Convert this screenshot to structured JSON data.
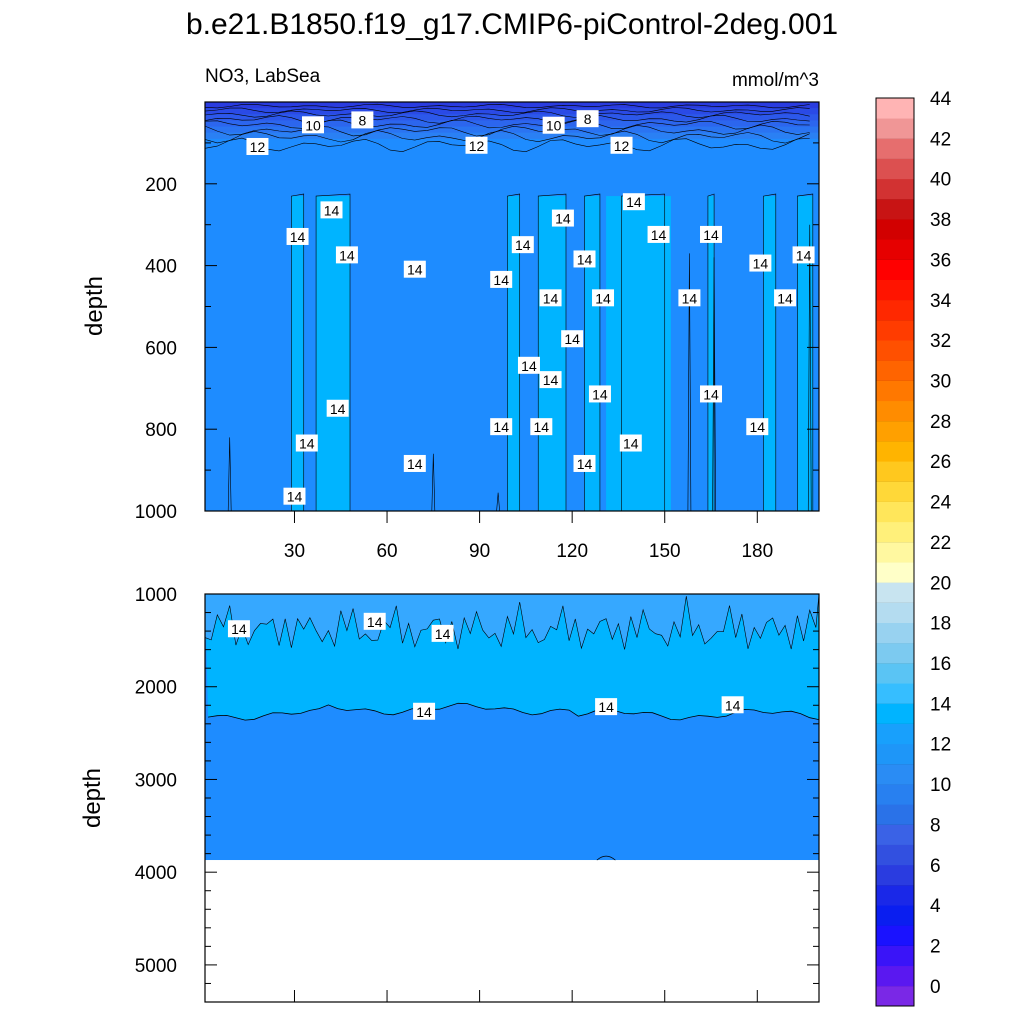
{
  "page_title": "b.e21.B1850.f19_g17.CMIP6-piControl-2deg.001",
  "colors": {
    "band_deep": "#1e8cff",
    "band_mid": "#00b4ff",
    "band_light": "#36a8ff",
    "surface_dark": "#2a4ae6",
    "missing": "#ffffff",
    "contour_line": "#000000"
  },
  "chart_data": [
    {
      "type": "heatmap",
      "panel": "upper",
      "left_title": "NO3, LabSea",
      "right_title": "mmol/m^3",
      "ylabel": "depth",
      "xlim": [
        1,
        200
      ],
      "ylim": [
        1000,
        0
      ],
      "xticks": [
        30,
        60,
        90,
        120,
        150,
        180
      ],
      "yticks": [
        200,
        400,
        600,
        800,
        1000
      ],
      "contour_levels_labeled": [
        8,
        10,
        12,
        14
      ],
      "contour_labels": [
        {
          "text": "8",
          "x": 52,
          "y": 45
        },
        {
          "text": "10",
          "x": 36,
          "y": 57
        },
        {
          "text": "12",
          "x": 18,
          "y": 110
        },
        {
          "text": "12",
          "x": 89,
          "y": 107
        },
        {
          "text": "10",
          "x": 114,
          "y": 58
        },
        {
          "text": "8",
          "x": 125,
          "y": 42
        },
        {
          "text": "12",
          "x": 136,
          "y": 107
        },
        {
          "text": "14",
          "x": 31,
          "y": 330
        },
        {
          "text": "14",
          "x": 42,
          "y": 265
        },
        {
          "text": "14",
          "x": 47,
          "y": 375
        },
        {
          "text": "14",
          "x": 69,
          "y": 410
        },
        {
          "text": "14",
          "x": 97,
          "y": 435
        },
        {
          "text": "14",
          "x": 104,
          "y": 350
        },
        {
          "text": "14",
          "x": 117,
          "y": 285
        },
        {
          "text": "14",
          "x": 113,
          "y": 480
        },
        {
          "text": "14",
          "x": 120,
          "y": 580
        },
        {
          "text": "14",
          "x": 124,
          "y": 385
        },
        {
          "text": "14",
          "x": 130,
          "y": 480
        },
        {
          "text": "14",
          "x": 140,
          "y": 245
        },
        {
          "text": "14",
          "x": 148,
          "y": 325
        },
        {
          "text": "14",
          "x": 158,
          "y": 480
        },
        {
          "text": "14",
          "x": 165,
          "y": 325
        },
        {
          "text": "14",
          "x": 181,
          "y": 395
        },
        {
          "text": "14",
          "x": 189,
          "y": 480
        },
        {
          "text": "14",
          "x": 195,
          "y": 375
        },
        {
          "text": "14",
          "x": 106,
          "y": 645
        },
        {
          "text": "14",
          "x": 113,
          "y": 680
        },
        {
          "text": "14",
          "x": 129,
          "y": 715
        },
        {
          "text": "14",
          "x": 165,
          "y": 715
        },
        {
          "text": "14",
          "x": 44,
          "y": 750
        },
        {
          "text": "14",
          "x": 34,
          "y": 835
        },
        {
          "text": "14",
          "x": 97,
          "y": 795
        },
        {
          "text": "14",
          "x": 110,
          "y": 795
        },
        {
          "text": "14",
          "x": 139,
          "y": 835
        },
        {
          "text": "14",
          "x": 180,
          "y": 795
        },
        {
          "text": "14",
          "x": 69,
          "y": 885
        },
        {
          "text": "14",
          "x": 124,
          "y": 885
        },
        {
          "text": "14",
          "x": 30,
          "y": 965
        }
      ],
      "bands": [
        {
          "from_x": 29,
          "to_x": 33,
          "value": 14
        },
        {
          "from_x": 37,
          "to_x": 48,
          "value": 14
        },
        {
          "from_x": 99,
          "to_x": 103,
          "value": 14
        },
        {
          "from_x": 109,
          "to_x": 118,
          "value": 14
        },
        {
          "from_x": 124,
          "to_x": 129,
          "value": 14
        },
        {
          "from_x": 136,
          "to_x": 150,
          "value": 14
        },
        {
          "from_x": 164,
          "to_x": 166,
          "value": 14
        },
        {
          "from_x": 182,
          "to_x": 186,
          "value": 14
        },
        {
          "from_x": 193,
          "to_x": 198,
          "value": 14
        }
      ]
    },
    {
      "type": "heatmap",
      "panel": "lower",
      "ylabel": "depth",
      "xlim": [
        1,
        200
      ],
      "ylim": [
        5400,
        1000
      ],
      "yticks": [
        1000,
        2000,
        3000,
        4000,
        5000
      ],
      "bottom_depth": 3870,
      "contour_14_depth": 2300,
      "contour_labels": [
        {
          "text": "14",
          "x": 12,
          "y": 1380
        },
        {
          "text": "14",
          "x": 56,
          "y": 1300
        },
        {
          "text": "14",
          "x": 78,
          "y": 1430
        },
        {
          "text": "14",
          "x": 72,
          "y": 2270
        },
        {
          "text": "14",
          "x": 131,
          "y": 2220
        },
        {
          "text": "14",
          "x": 172,
          "y": 2200
        }
      ]
    }
  ],
  "colorbar": {
    "labels": [
      "0",
      "2",
      "4",
      "6",
      "8",
      "10",
      "12",
      "14",
      "16",
      "18",
      "20",
      "22",
      "24",
      "26",
      "28",
      "30",
      "32",
      "34",
      "36",
      "38",
      "40",
      "42",
      "44"
    ],
    "colors": [
      "#7a28e6",
      "#5a18f0",
      "#3a14f8",
      "#1a12ff",
      "#0a1ef0",
      "#1a28e8",
      "#2a3ce0",
      "#3250e0",
      "#3a62e6",
      "#2a72e8",
      "#2880f0",
      "#2a8cf4",
      "#1e96f8",
      "#18a0fc",
      "#00b4ff",
      "#36beff",
      "#5ac4f4",
      "#7ccaf0",
      "#98d2f0",
      "#b4dcf0",
      "#c8e4f0",
      "#ffffc8",
      "#fff8a0",
      "#fff07a",
      "#ffe65a",
      "#ffd838",
      "#ffc81e",
      "#ffb400",
      "#ffa000",
      "#ff8c00",
      "#ff7800",
      "#ff6400",
      "#ff5000",
      "#ff3c00",
      "#ff2800",
      "#ff1400",
      "#ff0000",
      "#e60000",
      "#d20000",
      "#c81414",
      "#d23232",
      "#dc5050",
      "#e66e6e",
      "#f09696",
      "#ffb4b4"
    ]
  }
}
